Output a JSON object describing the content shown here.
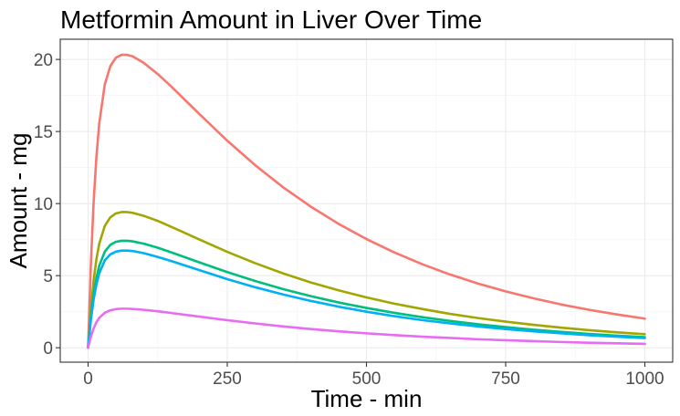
{
  "chart_data": {
    "type": "line",
    "title": "Metformin Amount in Liver Over Time",
    "xlabel": "Time - min",
    "ylabel": "Amount - mg",
    "xlim": [
      -50,
      1050
    ],
    "ylim": [
      -1,
      21.4
    ],
    "x_ticks": [
      0,
      250,
      500,
      750,
      1000
    ],
    "y_ticks": [
      0,
      5,
      10,
      15,
      20
    ],
    "grid": true,
    "legend": "none",
    "x": [
      0,
      5,
      10,
      15,
      20,
      30,
      40,
      50,
      60,
      70,
      80,
      100,
      125,
      150,
      200,
      250,
      300,
      350,
      400,
      450,
      500,
      550,
      600,
      650,
      700,
      750,
      800,
      850,
      900,
      950,
      1000
    ],
    "series": [
      {
        "color": "#F8766D",
        "values": [
          0,
          5.81,
          10.12,
          13.27,
          15.55,
          18.26,
          19.54,
          20.12,
          20.32,
          20.32,
          20.21,
          19.76,
          18.99,
          18.1,
          16.21,
          14.36,
          12.67,
          11.14,
          9.79,
          8.59,
          7.54,
          6.61,
          5.8,
          5.08,
          4.46,
          3.91,
          3.43,
          3.0,
          2.63,
          2.31,
          2.02
        ]
      },
      {
        "color": "#A3A500",
        "values": [
          0,
          2.69,
          4.69,
          6.15,
          7.2,
          8.45,
          9.05,
          9.32,
          9.41,
          9.41,
          9.36,
          9.15,
          8.8,
          8.38,
          7.51,
          6.65,
          5.87,
          5.16,
          4.53,
          3.98,
          3.49,
          3.06,
          2.69,
          2.35,
          2.06,
          1.81,
          1.59,
          1.39,
          1.22,
          1.07,
          0.94
        ]
      },
      {
        "color": "#00BF7D",
        "values": [
          0,
          2.12,
          3.7,
          4.85,
          5.68,
          6.67,
          7.14,
          7.35,
          7.42,
          7.42,
          7.38,
          7.22,
          6.94,
          6.61,
          5.92,
          5.25,
          4.63,
          4.07,
          3.58,
          3.14,
          2.76,
          2.42,
          2.12,
          1.86,
          1.63,
          1.43,
          1.25,
          1.1,
          0.96,
          0.84,
          0.74
        ]
      },
      {
        "color": "#00B0F6",
        "values": [
          0,
          1.93,
          3.36,
          4.4,
          5.16,
          6.06,
          6.48,
          6.67,
          6.74,
          6.74,
          6.71,
          6.56,
          6.3,
          6.01,
          5.38,
          4.76,
          4.2,
          3.7,
          3.25,
          2.85,
          2.5,
          2.19,
          1.92,
          1.69,
          1.48,
          1.3,
          1.14,
          1.0,
          0.87,
          0.77,
          0.67
        ]
      },
      {
        "color": "#E76BF3",
        "values": [
          0,
          0.77,
          1.35,
          1.77,
          2.07,
          2.43,
          2.6,
          2.68,
          2.71,
          2.71,
          2.69,
          2.63,
          2.53,
          2.41,
          2.16,
          1.91,
          1.69,
          1.48,
          1.3,
          1.14,
          1.0,
          0.88,
          0.77,
          0.68,
          0.59,
          0.52,
          0.46,
          0.4,
          0.35,
          0.31,
          0.27
        ]
      }
    ]
  }
}
